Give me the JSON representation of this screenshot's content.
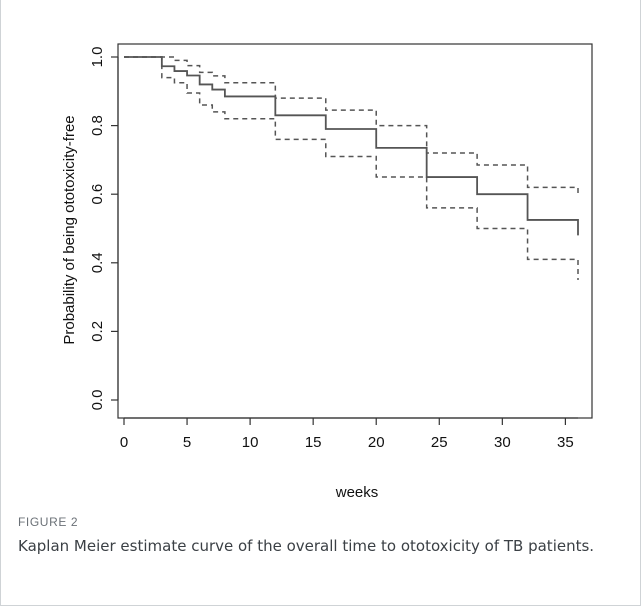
{
  "figure": {
    "label": "FIGURE 2",
    "caption": "Kaplan Meier estimate curve of the overall time to ototoxicity of TB patients."
  },
  "chart_data": {
    "type": "line",
    "xlabel": "weeks",
    "ylabel": "Probability of being ototoxicity-free",
    "xlim": [
      0,
      36
    ],
    "ylim": [
      0,
      1.0
    ],
    "xticks": [
      0,
      5,
      10,
      15,
      20,
      25,
      30,
      35
    ],
    "xtick_labels": [
      "0",
      "5",
      "10",
      "15",
      "20",
      "25",
      "30",
      "35"
    ],
    "yticks": [
      0.0,
      0.2,
      0.4,
      0.6,
      0.8,
      1.0
    ],
    "ytick_labels": [
      "0.0",
      "0.2",
      "0.4",
      "0.6",
      "0.8",
      "1.0"
    ],
    "grid": false,
    "step": true,
    "series": [
      {
        "role": "estimate",
        "style": "solid",
        "color": "#555555",
        "x": [
          0,
          3,
          4,
          5,
          6,
          7,
          8,
          12,
          16,
          20,
          24,
          28,
          32,
          36
        ],
        "y": [
          1.0,
          0.973,
          0.959,
          0.946,
          0.92,
          0.905,
          0.885,
          0.83,
          0.79,
          0.735,
          0.65,
          0.6,
          0.525,
          0.48
        ]
      },
      {
        "role": "upper-confidence-bound",
        "style": "dashed",
        "color": "#555555",
        "x": [
          0,
          3,
          4,
          5,
          6,
          7,
          8,
          12,
          16,
          20,
          24,
          28,
          32,
          36
        ],
        "y": [
          1.0,
          1.0,
          0.99,
          0.975,
          0.955,
          0.945,
          0.925,
          0.88,
          0.845,
          0.8,
          0.72,
          0.685,
          0.62,
          0.6
        ]
      },
      {
        "role": "lower-confidence-bound",
        "style": "dashed",
        "color": "#555555",
        "x": [
          0,
          3,
          4,
          5,
          6,
          7,
          8,
          12,
          16,
          20,
          24,
          28,
          32,
          36
        ],
        "y": [
          1.0,
          0.94,
          0.925,
          0.895,
          0.86,
          0.84,
          0.82,
          0.76,
          0.71,
          0.65,
          0.56,
          0.5,
          0.41,
          0.35
        ]
      }
    ]
  }
}
